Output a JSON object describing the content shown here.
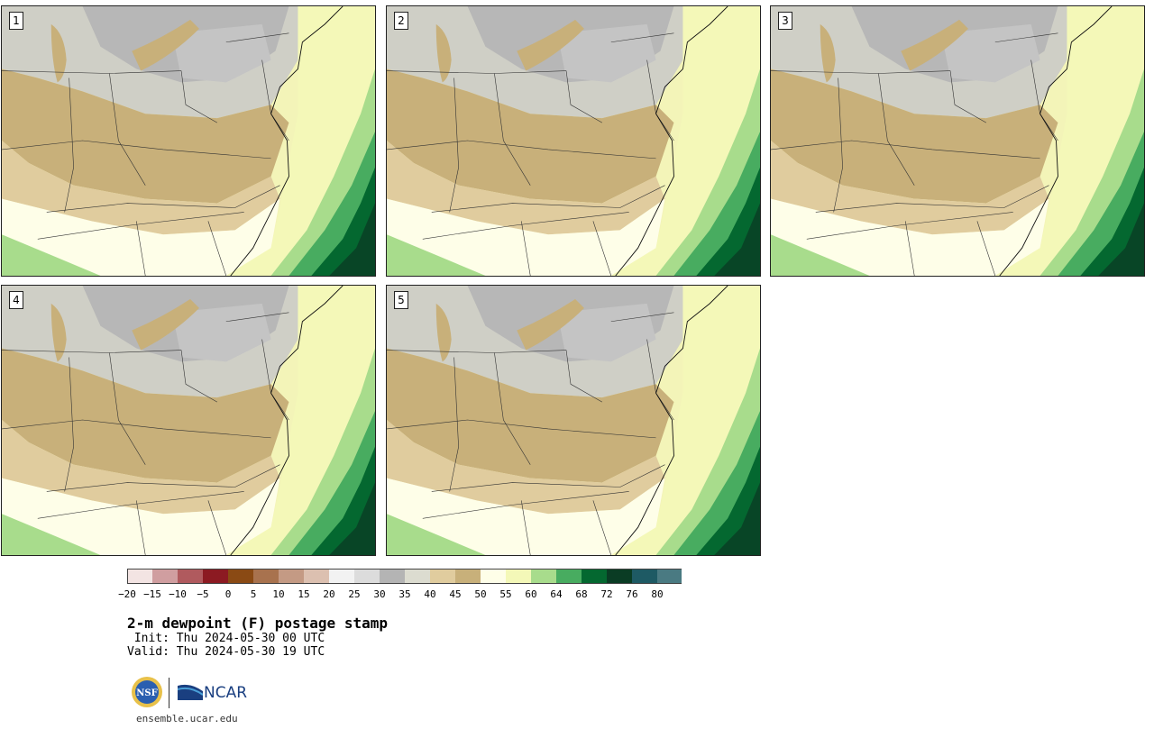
{
  "panels": [
    {
      "label": "1"
    },
    {
      "label": "2"
    },
    {
      "label": "3"
    },
    {
      "label": "4"
    },
    {
      "label": "5"
    }
  ],
  "colorbar": {
    "ticks": [
      "−20",
      "−15",
      "−10",
      "−5",
      "0",
      "5",
      "10",
      "15",
      "20",
      "25",
      "30",
      "35",
      "40",
      "45",
      "50",
      "55",
      "60",
      "64",
      "68",
      "72",
      "76",
      "80"
    ],
    "colors": [
      "#f3e4e3",
      "#d09ea0",
      "#b05a5e",
      "#8c1a22",
      "#8a4a14",
      "#a8724e",
      "#c49a84",
      "#dcc0b0",
      "#f2f2f2",
      "#dcdcdc",
      "#b4b4b4",
      "#dcdcd0",
      "#e0cc9e",
      "#c8b07a",
      "#fefee8",
      "#f4f8b8",
      "#a8dc8c",
      "#48ac60",
      "#046830",
      "#0a3c24",
      "#1e5a64",
      "#4a7a82"
    ]
  },
  "title": "2-m dewpoint (F) postage stamp",
  "init_line": " Init: Thu 2024-05-30 00 UTC",
  "valid_line": "Valid: Thu 2024-05-30 19 UTC",
  "footer": {
    "logo_nsf": "NSF",
    "logo_ncar": "NCAR",
    "url": "ensemble.ucar.edu"
  }
}
